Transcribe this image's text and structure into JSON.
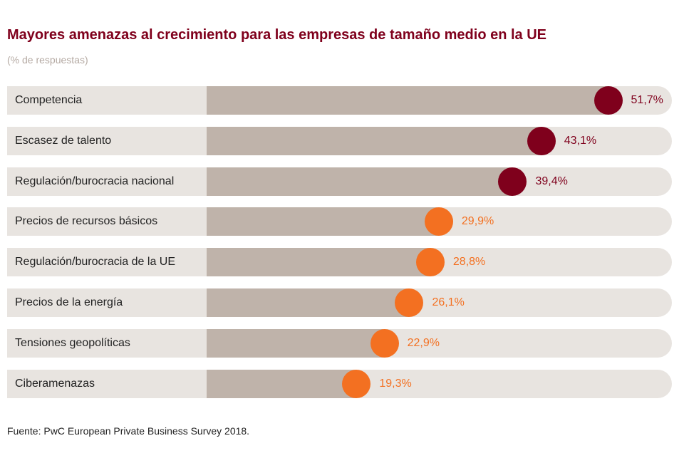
{
  "chart_data": {
    "type": "bar",
    "title": "Mayores amenazas al crecimiento para las empresas de tamaño medio en la UE",
    "subtitle": "(% de respuestas)",
    "source": "Fuente: PwC European Private Business Survey 2018.",
    "categories": [
      "Competencia",
      "Escasez de talento",
      "Regulación/burocracia nacional",
      "Precios de recursos básicos",
      "Regulación/burocracia de la UE",
      "Precios de la energía",
      "Tensiones geopolíticas",
      "Ciberamenazas"
    ],
    "values": [
      51.7,
      43.1,
      39.4,
      29.9,
      28.8,
      26.1,
      22.9,
      19.3
    ],
    "value_labels": [
      "51,7%",
      "43,1%",
      "39,4%",
      "29,9%",
      "28,8%",
      "26,1%",
      "22,9%",
      "19,3%"
    ],
    "highlight_count": 3,
    "colors": {
      "highlight": "#7f001c",
      "other": "#f37021",
      "fill": "#bfb3aa",
      "track": "#e8e4e0"
    },
    "xlim": [
      0,
      60
    ]
  }
}
